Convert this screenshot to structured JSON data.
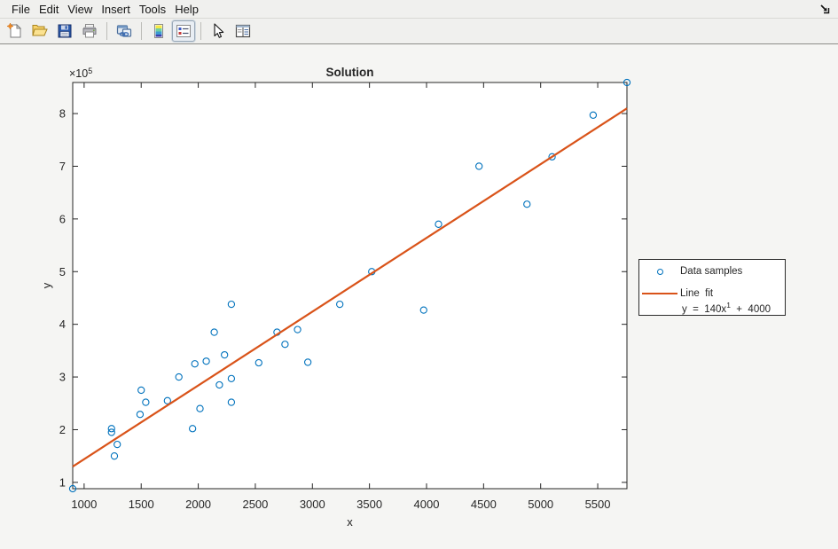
{
  "window": {
    "menu": {
      "items": [
        "File",
        "Edit",
        "View",
        "Insert",
        "Tools",
        "Help"
      ]
    },
    "dock_icon": "dock-figure-arrow",
    "toolbar": {
      "icons": [
        "new-figure",
        "open-file",
        "save-figure",
        "print-figure",
        "link-plot",
        "insert-colorbar",
        "insert-legend",
        "edit-plot",
        "property-inspector"
      ],
      "pressed_icon": "insert-legend"
    }
  },
  "chart_data": {
    "type": "scatter",
    "title": "Solution",
    "xlabel": "x",
    "ylabel": "y",
    "y_exponent": {
      "base": "×10",
      "exp": "5"
    },
    "xlim": [
      900,
      5756
    ],
    "ylim": [
      88000,
      859000
    ],
    "xticks": [
      1000,
      1500,
      2000,
      2500,
      3000,
      3500,
      4000,
      4500,
      5000,
      5500
    ],
    "yticks": [
      100000,
      200000,
      300000,
      400000,
      500000,
      600000,
      700000,
      800000
    ],
    "ytick_labels": [
      "1",
      "2",
      "3",
      "4",
      "5",
      "6",
      "7",
      "8"
    ],
    "grid": false,
    "colors": {
      "samples": "#0072BD",
      "fit": "#D95319",
      "axis": "#262626",
      "plot_bg": "#ffffff",
      "figure_bg": "#f5f5f3"
    },
    "series": [
      {
        "name": "Data samples",
        "type": "scatter",
        "color": "#0072BD",
        "points": [
          [
            900,
            88000
          ],
          [
            1240,
            202000
          ],
          [
            1240,
            195000
          ],
          [
            1290,
            172000
          ],
          [
            1265,
            150000
          ],
          [
            1490,
            229000
          ],
          [
            1500,
            275000
          ],
          [
            1540,
            252000
          ],
          [
            1730,
            255000
          ],
          [
            1830,
            300000
          ],
          [
            1950,
            202000
          ],
          [
            1970,
            325000
          ],
          [
            2015,
            240000
          ],
          [
            2070,
            330000
          ],
          [
            2140,
            385000
          ],
          [
            2185,
            285000
          ],
          [
            2230,
            342000
          ],
          [
            2290,
            252000
          ],
          [
            2290,
            297000
          ],
          [
            2290,
            438000
          ],
          [
            2530,
            327000
          ],
          [
            2690,
            385000
          ],
          [
            2760,
            362000
          ],
          [
            2870,
            390000
          ],
          [
            2960,
            328000
          ],
          [
            3240,
            438000
          ],
          [
            3520,
            500000
          ],
          [
            3975,
            427000
          ],
          [
            4105,
            590000
          ],
          [
            4460,
            700000
          ],
          [
            4880,
            628000
          ],
          [
            5100,
            718000
          ],
          [
            5460,
            797000
          ],
          [
            5756,
            859000
          ]
        ]
      },
      {
        "name": "Line  fit",
        "type": "line",
        "color": "#D95319",
        "equation": {
          "slope": 140,
          "intercept": 4000
        },
        "equation_text": {
          "pre": "y  =  140x",
          "sup": "1",
          "post": "  +  4000"
        }
      }
    ],
    "legend": {
      "position": "outside-right",
      "entries": [
        "Data samples",
        "Line  fit"
      ]
    }
  }
}
